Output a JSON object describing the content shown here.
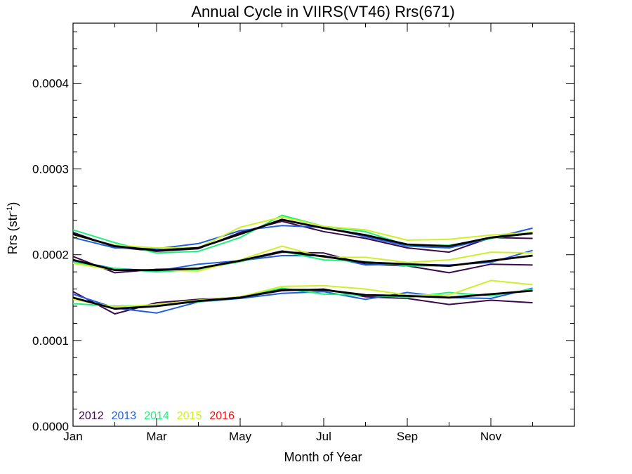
{
  "chart_data": {
    "type": "line",
    "title": "Annual Cycle in VIIRS(VT46) Rrs(671)",
    "xlabel": "Month of Year",
    "ylabel_main": "Rrs (str",
    "ylabel_sup": "-1",
    "ylabel_close": ")",
    "x_ticks": [
      {
        "x": 1,
        "label": "Jan"
      },
      {
        "x": 3,
        "label": "Mar"
      },
      {
        "x": 5,
        "label": "May"
      },
      {
        "x": 7,
        "label": "Jul"
      },
      {
        "x": 9,
        "label": "Sep"
      },
      {
        "x": 11,
        "label": "Nov"
      }
    ],
    "y_ticks": [
      {
        "y": 0.0,
        "label": "0.0000"
      },
      {
        "y": 0.0001,
        "label": "0.0001"
      },
      {
        "y": 0.0002,
        "label": "0.0002"
      },
      {
        "y": 0.0003,
        "label": "0.0003"
      },
      {
        "y": 0.0004,
        "label": "0.0004"
      }
    ],
    "xlim": [
      1,
      13
    ],
    "ylim": [
      0,
      0.00047
    ],
    "x": [
      1,
      2,
      3,
      4,
      5,
      6,
      7,
      8,
      9,
      10,
      11,
      12
    ],
    "legend": {
      "placement": "bottom-left",
      "entries": [
        {
          "label": "2012",
          "color": "#3a0a4a"
        },
        {
          "label": "2013",
          "color": "#1f5fe0"
        },
        {
          "label": "2014",
          "color": "#1ef07a"
        },
        {
          "label": "2015",
          "color": "#cdf02a"
        },
        {
          "label": "2016",
          "color": "#ee1111"
        }
      ]
    },
    "series": [
      {
        "name": "2012",
        "color": "#3a0a4a",
        "values": [
          0.000226,
          0.000209,
          0.000204,
          0.000207,
          0.000226,
          0.000239,
          0.000227,
          0.000219,
          0.000208,
          0.000203,
          0.00022,
          0.000219
        ]
      },
      {
        "name": "2013",
        "color": "#1f5fe0",
        "values": [
          0.00022,
          0.000208,
          0.000207,
          0.000213,
          0.000228,
          0.000234,
          0.000232,
          0.000221,
          0.00021,
          0.000208,
          0.000219,
          0.000231
        ]
      },
      {
        "name": "2014",
        "color": "#1ef07a",
        "values": [
          0.000229,
          0.000214,
          0.000202,
          0.000204,
          0.00022,
          0.000246,
          0.000233,
          0.000227,
          0.000211,
          0.000211,
          0.000219,
          0.000225
        ]
      },
      {
        "name": "2015",
        "color": "#cdf02a",
        "values": [
          0.000223,
          0.000211,
          0.000208,
          0.000208,
          0.000232,
          0.000244,
          0.000233,
          0.000229,
          0.000217,
          0.000218,
          0.000223,
          0.000226
        ]
      },
      {
        "name": "",
        "color": "#000000",
        "values": [
          0.000224,
          0.00021,
          0.000205,
          0.000208,
          0.000224,
          0.000241,
          0.000231,
          0.000223,
          0.000212,
          0.00021,
          0.00022,
          0.000225
        ]
      },
      {
        "name": "2012",
        "color": "#3a0a4a",
        "values": [
          0.000198,
          0.000179,
          0.000183,
          0.000184,
          0.000192,
          0.000203,
          0.000202,
          0.000189,
          0.000187,
          0.000179,
          0.000189,
          0.000188
        ]
      },
      {
        "name": "2013",
        "color": "#1f5fe0",
        "values": [
          0.000193,
          0.000184,
          0.000181,
          0.000189,
          0.000193,
          0.000199,
          0.000199,
          0.000188,
          0.000189,
          0.000188,
          0.000191,
          0.000205
        ]
      },
      {
        "name": "2014",
        "color": "#1ef07a",
        "values": [
          0.000191,
          0.000184,
          0.00018,
          0.000183,
          0.000192,
          0.000204,
          0.000194,
          0.000192,
          0.000187,
          0.000187,
          0.000193,
          0.000199
        ]
      },
      {
        "name": "2015",
        "color": "#cdf02a",
        "values": [
          0.00019,
          0.000182,
          0.000182,
          0.000181,
          0.000194,
          0.00021,
          0.000197,
          0.000197,
          0.000191,
          0.000194,
          0.000203,
          0.000202
        ]
      },
      {
        "name": "",
        "color": "#000000",
        "values": [
          0.000194,
          0.000182,
          0.000182,
          0.000184,
          0.000193,
          0.000204,
          0.000198,
          0.000191,
          0.000189,
          0.000187,
          0.000193,
          0.000199
        ]
      },
      {
        "name": "2012",
        "color": "#3a0a4a",
        "values": [
          0.000157,
          0.000131,
          0.000144,
          0.000148,
          0.00015,
          0.000158,
          0.00016,
          0.000151,
          0.000149,
          0.000142,
          0.000147,
          0.000144
        ]
      },
      {
        "name": "2013",
        "color": "#1f5fe0",
        "values": [
          0.000154,
          0.000138,
          0.000132,
          0.000145,
          0.000149,
          0.000155,
          0.000157,
          0.000148,
          0.000156,
          0.00015,
          0.000149,
          0.000161
        ]
      },
      {
        "name": "2014",
        "color": "#1ef07a",
        "values": [
          0.000143,
          0.00014,
          0.000141,
          0.000145,
          0.00015,
          0.000161,
          0.000154,
          0.000153,
          0.00015,
          0.000156,
          0.000152,
          0.00016
        ]
      },
      {
        "name": "2015",
        "color": "#cdf02a",
        "values": [
          0.000148,
          0.000139,
          0.000142,
          0.000147,
          0.000151,
          0.000163,
          0.000164,
          0.00016,
          0.000153,
          0.000153,
          0.00017,
          0.000165
        ]
      },
      {
        "name": "",
        "color": "#000000",
        "values": [
          0.00015,
          0.000137,
          0.00014,
          0.000146,
          0.00015,
          0.000159,
          0.000159,
          0.000153,
          0.000152,
          0.00015,
          0.000154,
          0.000158
        ]
      }
    ]
  }
}
